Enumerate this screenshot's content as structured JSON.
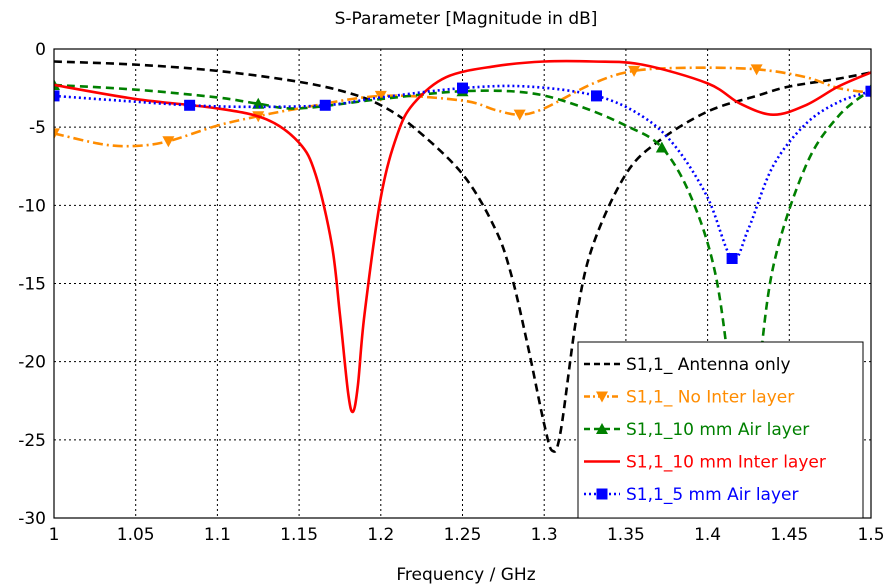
{
  "chart_data": {
    "type": "line",
    "title": "S-Parameter [Magnitude in dB]",
    "xlabel": "Frequency / GHz",
    "ylabel": "",
    "xlim": [
      1,
      1.5
    ],
    "ylim": [
      -30,
      0
    ],
    "xticks": [
      "1",
      "1.05",
      "1.1",
      "1.15",
      "1.2",
      "1.25",
      "1.3",
      "1.35",
      "1.4",
      "1.45",
      "1.5"
    ],
    "yticks": [
      "0",
      "-5",
      "-10",
      "-15",
      "-20",
      "-25",
      "-30"
    ],
    "grid": true,
    "legend_position": "bottom-right",
    "series": [
      {
        "name": "S1,1_ Antenna only",
        "color": "#000000",
        "dash": "dashed",
        "marker": "none",
        "x": [
          1.0,
          1.05,
          1.1,
          1.15,
          1.18,
          1.2,
          1.22,
          1.25,
          1.27,
          1.28,
          1.29,
          1.3,
          1.305,
          1.31,
          1.32,
          1.33,
          1.35,
          1.37,
          1.4,
          1.43,
          1.45,
          1.48,
          1.5
        ],
        "values": [
          -0.8,
          -1.0,
          -1.4,
          -2.1,
          -2.8,
          -3.6,
          -5.0,
          -8.0,
          -11.5,
          -14.5,
          -19.0,
          -24.0,
          -25.7,
          -24.5,
          -17.0,
          -12.5,
          -8.0,
          -5.9,
          -4.0,
          -3.0,
          -2.4,
          -1.9,
          -1.5
        ]
      },
      {
        "name": "S1,1_ No Inter layer",
        "color": "#ff8c00",
        "dash": "dashdot",
        "marker": "triangle-down",
        "markers_x": [
          1.0,
          1.07,
          1.125,
          1.2,
          1.285,
          1.355,
          1.43,
          1.5
        ],
        "x": [
          1.0,
          1.03,
          1.05,
          1.07,
          1.1,
          1.125,
          1.15,
          1.2,
          1.25,
          1.27,
          1.285,
          1.3,
          1.33,
          1.355,
          1.39,
          1.43,
          1.46,
          1.48,
          1.5
        ],
        "values": [
          -5.4,
          -6.1,
          -6.2,
          -5.9,
          -4.9,
          -4.3,
          -3.8,
          -3.0,
          -3.3,
          -3.9,
          -4.2,
          -3.8,
          -2.2,
          -1.4,
          -1.2,
          -1.3,
          -1.8,
          -2.5,
          -2.8
        ]
      },
      {
        "name": "S1,1_10 mm Air layer",
        "color": "#008000",
        "dash": "dashed",
        "marker": "triangle-up",
        "markers_x": [
          1.0,
          1.125,
          1.25,
          1.372,
          1.5
        ],
        "x": [
          1.0,
          1.05,
          1.1,
          1.125,
          1.15,
          1.2,
          1.25,
          1.29,
          1.32,
          1.35,
          1.372,
          1.39,
          1.405,
          1.415,
          1.42,
          1.423,
          1.43,
          1.44,
          1.46,
          1.48,
          1.5
        ],
        "values": [
          -2.3,
          -2.6,
          -3.1,
          -3.5,
          -3.8,
          -3.2,
          -2.7,
          -2.8,
          -3.6,
          -4.9,
          -6.3,
          -9.5,
          -14.5,
          -22.0,
          -26.0,
          -27.0,
          -22.0,
          -14.0,
          -7.5,
          -4.3,
          -2.6
        ]
      },
      {
        "name": "S1,1_10 mm Inter layer",
        "color": "#ff0000",
        "dash": "solid",
        "marker": "none",
        "x": [
          1.0,
          1.05,
          1.1,
          1.13,
          1.15,
          1.16,
          1.17,
          1.175,
          1.18,
          1.183,
          1.186,
          1.19,
          1.2,
          1.21,
          1.22,
          1.24,
          1.27,
          1.3,
          1.33,
          1.36,
          1.4,
          1.42,
          1.44,
          1.46,
          1.48,
          1.5
        ],
        "values": [
          -2.3,
          -3.2,
          -3.8,
          -4.5,
          -6.0,
          -8.0,
          -12.5,
          -17.0,
          -22.0,
          -23.2,
          -21.5,
          -17.0,
          -9.5,
          -5.5,
          -3.5,
          -1.8,
          -1.1,
          -0.8,
          -0.8,
          -1.0,
          -2.2,
          -3.5,
          -4.2,
          -3.6,
          -2.4,
          -1.5
        ]
      },
      {
        "name": "S1,1_5 mm Air layer",
        "color": "#0000ff",
        "dash": "dotted",
        "marker": "square",
        "markers_x": [
          1.0,
          1.083,
          1.166,
          1.25,
          1.332,
          1.415,
          1.5
        ],
        "x": [
          1.0,
          1.04,
          1.083,
          1.12,
          1.166,
          1.2,
          1.25,
          1.29,
          1.332,
          1.36,
          1.38,
          1.4,
          1.415,
          1.425,
          1.44,
          1.46,
          1.48,
          1.5
        ],
        "values": [
          -3.0,
          -3.3,
          -3.6,
          -3.7,
          -3.6,
          -3.1,
          -2.5,
          -2.4,
          -3.0,
          -4.3,
          -6.2,
          -9.5,
          -13.4,
          -11.5,
          -7.5,
          -4.8,
          -3.4,
          -2.7
        ]
      }
    ]
  }
}
